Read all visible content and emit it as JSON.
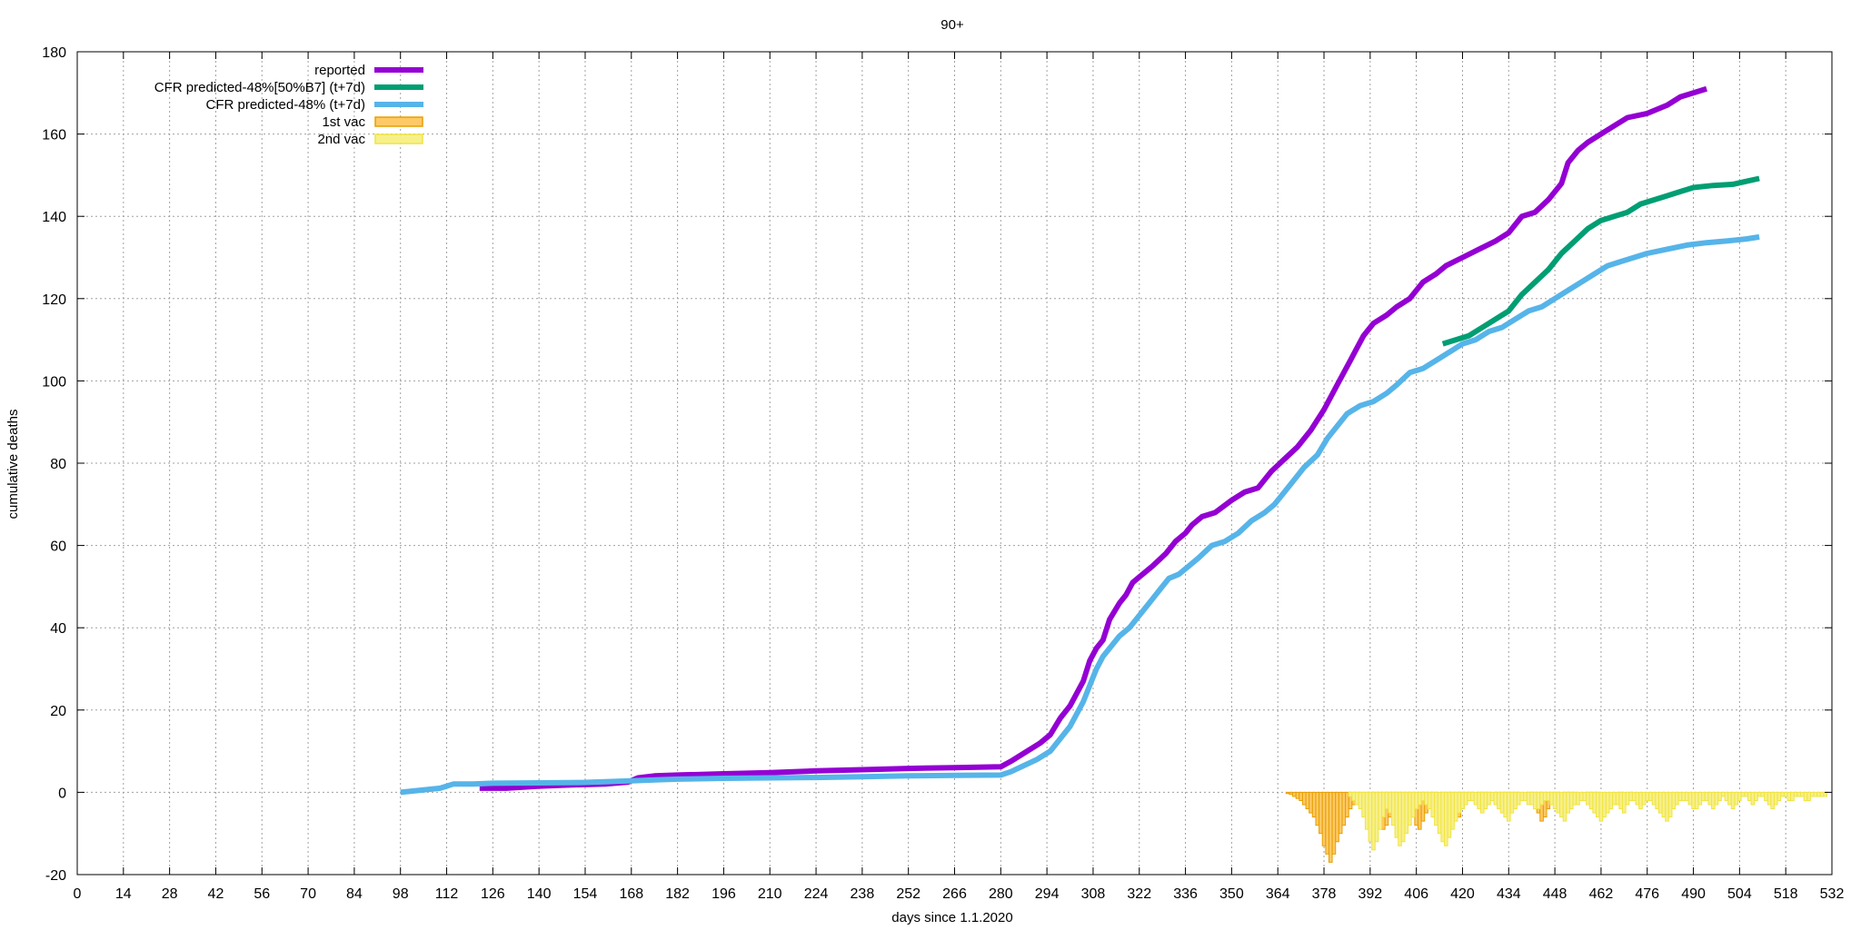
{
  "chart_data": {
    "type": "line",
    "title": "90+",
    "xlabel": "days since 1.1.2020",
    "ylabel": "cumulative deaths",
    "xlim": [
      0,
      532
    ],
    "ylim": [
      -20,
      180
    ],
    "xticks": [
      0,
      14,
      28,
      42,
      56,
      70,
      84,
      98,
      112,
      126,
      140,
      154,
      168,
      182,
      196,
      210,
      224,
      238,
      252,
      266,
      280,
      294,
      308,
      322,
      336,
      350,
      364,
      378,
      392,
      406,
      420,
      434,
      448,
      462,
      476,
      490,
      504,
      518,
      532
    ],
    "yticks": [
      -20,
      0,
      20,
      40,
      60,
      80,
      100,
      120,
      140,
      160,
      180
    ],
    "grid": true,
    "legend_position": "top-left",
    "series": [
      {
        "name": "reported",
        "color": "#9400d3",
        "style": "line",
        "points": [
          [
            122,
            1
          ],
          [
            130,
            1
          ],
          [
            140,
            1.5
          ],
          [
            150,
            1.8
          ],
          [
            160,
            2
          ],
          [
            167,
            2.5
          ],
          [
            170,
            3.5
          ],
          [
            175,
            4
          ],
          [
            182,
            4.2
          ],
          [
            196,
            4.5
          ],
          [
            210,
            4.8
          ],
          [
            224,
            5.2
          ],
          [
            238,
            5.5
          ],
          [
            252,
            5.8
          ],
          [
            266,
            6
          ],
          [
            280,
            6.2
          ],
          [
            283,
            7.5
          ],
          [
            288,
            10
          ],
          [
            292,
            12
          ],
          [
            295,
            14
          ],
          [
            298,
            18
          ],
          [
            301,
            21
          ],
          [
            303,
            24
          ],
          [
            305,
            27
          ],
          [
            307,
            32
          ],
          [
            309,
            35
          ],
          [
            311,
            37
          ],
          [
            313,
            42
          ],
          [
            316,
            46
          ],
          [
            318,
            48
          ],
          [
            320,
            51
          ],
          [
            323,
            53
          ],
          [
            326,
            55
          ],
          [
            330,
            58
          ],
          [
            333,
            61
          ],
          [
            336,
            63
          ],
          [
            338,
            65
          ],
          [
            341,
            67
          ],
          [
            345,
            68
          ],
          [
            350,
            71
          ],
          [
            354,
            73
          ],
          [
            358,
            74
          ],
          [
            362,
            78
          ],
          [
            366,
            81
          ],
          [
            370,
            84
          ],
          [
            374,
            88
          ],
          [
            378,
            93
          ],
          [
            382,
            99
          ],
          [
            386,
            105
          ],
          [
            388,
            108
          ],
          [
            390,
            111
          ],
          [
            393,
            114
          ],
          [
            397,
            116
          ],
          [
            400,
            118
          ],
          [
            404,
            120
          ],
          [
            408,
            124
          ],
          [
            412,
            126
          ],
          [
            415,
            128
          ],
          [
            420,
            130
          ],
          [
            425,
            132
          ],
          [
            430,
            134
          ],
          [
            434,
            136
          ],
          [
            438,
            140
          ],
          [
            442,
            141
          ],
          [
            446,
            144
          ],
          [
            450,
            148
          ],
          [
            452,
            153
          ],
          [
            455,
            156
          ],
          [
            458,
            158
          ],
          [
            462,
            160
          ],
          [
            466,
            162
          ],
          [
            470,
            164
          ],
          [
            476,
            165
          ],
          [
            482,
            167
          ],
          [
            486,
            169
          ],
          [
            490,
            170
          ],
          [
            494,
            171
          ]
        ]
      },
      {
        "name": "CFR predicted-48%[50%B7] (t+7d)",
        "color": "#009e73",
        "style": "line",
        "points": [
          [
            414,
            109
          ],
          [
            418,
            110
          ],
          [
            422,
            111
          ],
          [
            426,
            113
          ],
          [
            430,
            115
          ],
          [
            434,
            117
          ],
          [
            438,
            121
          ],
          [
            442,
            124
          ],
          [
            446,
            127
          ],
          [
            450,
            131
          ],
          [
            454,
            134
          ],
          [
            458,
            137
          ],
          [
            462,
            139
          ],
          [
            466,
            140
          ],
          [
            470,
            141
          ],
          [
            474,
            143
          ],
          [
            478,
            144
          ],
          [
            482,
            145
          ],
          [
            486,
            146
          ],
          [
            490,
            147
          ],
          [
            496,
            147.5
          ],
          [
            502,
            147.8
          ],
          [
            506,
            148.5
          ],
          [
            510,
            149.2
          ]
        ]
      },
      {
        "name": "CFR predicted-48% (t+7d)",
        "color": "#56b4e9",
        "style": "line",
        "points": [
          [
            98,
            0
          ],
          [
            104,
            0.5
          ],
          [
            110,
            1
          ],
          [
            114,
            2
          ],
          [
            120,
            2
          ],
          [
            126,
            2.2
          ],
          [
            140,
            2.3
          ],
          [
            154,
            2.4
          ],
          [
            168,
            2.8
          ],
          [
            175,
            3
          ],
          [
            182,
            3.2
          ],
          [
            196,
            3.4
          ],
          [
            210,
            3.5
          ],
          [
            224,
            3.6
          ],
          [
            238,
            3.8
          ],
          [
            252,
            4
          ],
          [
            266,
            4.1
          ],
          [
            280,
            4.2
          ],
          [
            283,
            5
          ],
          [
            287,
            6.5
          ],
          [
            291,
            8
          ],
          [
            295,
            10
          ],
          [
            298,
            13
          ],
          [
            301,
            16
          ],
          [
            303,
            19
          ],
          [
            305,
            22
          ],
          [
            307,
            26
          ],
          [
            309,
            30
          ],
          [
            311,
            33
          ],
          [
            313,
            35
          ],
          [
            316,
            38
          ],
          [
            319,
            40
          ],
          [
            322,
            43
          ],
          [
            325,
            46
          ],
          [
            328,
            49
          ],
          [
            331,
            52
          ],
          [
            334,
            53
          ],
          [
            337,
            55
          ],
          [
            340,
            57
          ],
          [
            344,
            60
          ],
          [
            348,
            61
          ],
          [
            352,
            63
          ],
          [
            356,
            66
          ],
          [
            360,
            68
          ],
          [
            363,
            70
          ],
          [
            366,
            73
          ],
          [
            369,
            76
          ],
          [
            372,
            79
          ],
          [
            376,
            82
          ],
          [
            379,
            86
          ],
          [
            382,
            89
          ],
          [
            385,
            92
          ],
          [
            389,
            94
          ],
          [
            393,
            95
          ],
          [
            397,
            97
          ],
          [
            400,
            99
          ],
          [
            404,
            102
          ],
          [
            408,
            103
          ],
          [
            412,
            105
          ],
          [
            416,
            107
          ],
          [
            420,
            109
          ],
          [
            424,
            110
          ],
          [
            428,
            112
          ],
          [
            432,
            113
          ],
          [
            436,
            115
          ],
          [
            440,
            117
          ],
          [
            444,
            118
          ],
          [
            448,
            120
          ],
          [
            452,
            122
          ],
          [
            456,
            124
          ],
          [
            460,
            126
          ],
          [
            464,
            128
          ],
          [
            468,
            129
          ],
          [
            472,
            130
          ],
          [
            476,
            131
          ],
          [
            482,
            132
          ],
          [
            488,
            133
          ],
          [
            494,
            133.6
          ],
          [
            500,
            134
          ],
          [
            506,
            134.5
          ],
          [
            510,
            135
          ]
        ]
      },
      {
        "name": "1st vac",
        "color": "#e69f00",
        "fill": "#ffc966",
        "style": "bars",
        "x_start": 364,
        "values": [
          0,
          0,
          0,
          -0.3,
          -0.5,
          -1,
          -1.5,
          -2,
          -3,
          -4,
          -5,
          -6,
          -8,
          -10,
          -13,
          -15,
          -17,
          -15,
          -12,
          -10,
          -8,
          -6,
          -4,
          -3,
          -2,
          -1,
          0,
          -1,
          -2,
          -3,
          -5,
          -7,
          -9,
          -8,
          -6,
          -4,
          -3,
          -2,
          -1,
          -2,
          -4,
          -6,
          -8,
          -9,
          -7,
          -5,
          -3,
          -2,
          -1,
          0,
          -1,
          -2,
          -3,
          -4,
          -5,
          -6,
          -4,
          -3,
          -2,
          -1,
          0,
          -1,
          -2,
          -2,
          -1,
          0,
          -1,
          -2,
          -3,
          -4,
          -5,
          -3,
          -2,
          -1,
          0,
          0,
          -1,
          -2,
          -3,
          -5,
          -7,
          -6,
          -4,
          -3,
          -2,
          -1,
          0,
          -1,
          -1,
          -2,
          -1,
          0,
          0,
          0,
          -1,
          -1,
          -1,
          -1,
          0,
          0,
          0,
          0,
          0,
          0,
          -0.5,
          0,
          0,
          -0.5,
          0,
          0,
          0,
          0,
          0,
          0,
          0,
          0,
          0,
          0,
          0,
          0,
          0,
          0,
          0,
          0,
          0,
          0,
          0,
          0,
          0,
          0,
          0,
          0,
          0,
          0,
          0,
          0,
          0,
          0,
          0,
          0,
          0,
          0,
          0,
          0,
          0,
          0,
          0,
          0,
          0,
          0,
          0,
          0,
          0,
          0,
          0,
          0,
          0,
          0,
          0,
          0,
          0,
          0,
          0,
          0,
          0,
          0,
          0,
          0,
          0,
          0,
          0,
          0,
          0
        ]
      },
      {
        "name": "2nd vac",
        "color": "#f0e442",
        "fill": "#f7f08a",
        "style": "bars",
        "x_start": 364,
        "values": [
          0,
          0,
          0,
          0,
          0,
          0,
          0,
          0,
          0,
          0,
          0,
          0,
          0,
          0,
          0,
          0,
          0,
          0,
          0,
          0,
          0,
          0,
          -1,
          -2,
          -3,
          -4,
          -6,
          -9,
          -12,
          -14,
          -12,
          -9,
          -6,
          -4,
          -5,
          -8,
          -11,
          -13,
          -12,
          -10,
          -8,
          -6,
          -4,
          -3,
          -2,
          -3,
          -4,
          -6,
          -8,
          -10,
          -12,
          -13,
          -11,
          -9,
          -7,
          -5,
          -4,
          -3,
          -2,
          -2,
          -3,
          -4,
          -5,
          -4,
          -3,
          -2,
          -3,
          -4,
          -5,
          -6,
          -7,
          -5,
          -4,
          -3,
          -2,
          -2,
          -3,
          -3,
          -4,
          -4,
          -3,
          -2,
          -2,
          -3,
          -4,
          -5,
          -6,
          -7,
          -5,
          -4,
          -3,
          -3,
          -2,
          -2,
          -3,
          -4,
          -5,
          -6,
          -7,
          -6,
          -5,
          -4,
          -3,
          -3,
          -4,
          -5,
          -3,
          -2,
          -2,
          -3,
          -4,
          -3,
          -2,
          -2,
          -3,
          -4,
          -5,
          -6,
          -7,
          -6,
          -4,
          -3,
          -2,
          -2,
          -2,
          -3,
          -4,
          -4,
          -3,
          -2,
          -2,
          -3,
          -4,
          -3,
          -2,
          -1,
          -2,
          -3,
          -4,
          -3,
          -2,
          -1,
          -1,
          -2,
          -3,
          -2,
          -1,
          -1,
          -2,
          -3,
          -4,
          -3,
          -2,
          -1,
          -1,
          -2,
          -2,
          -1,
          -1,
          -1,
          -2,
          -2,
          -1,
          -1,
          -1,
          -1,
          -1
        ]
      }
    ]
  }
}
